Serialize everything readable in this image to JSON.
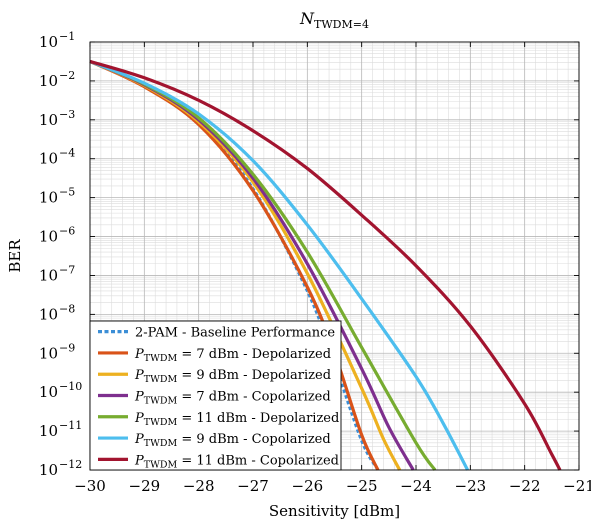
{
  "chart_data": {
    "type": "line",
    "title": "N",
    "title_sub": "TWDM=4",
    "xlabel": "Sensitivity [dBm]",
    "ylabel": "BER",
    "xlim": [
      -30,
      -21
    ],
    "ylog_exponent_range": [
      -12,
      -1
    ],
    "y_scale": "log",
    "grid": true,
    "legend_position": "bottom-left",
    "x_ticks": [
      {
        "value": -30,
        "label": "−30"
      },
      {
        "value": -29,
        "label": "−29"
      },
      {
        "value": -28,
        "label": "−28"
      },
      {
        "value": -27,
        "label": "−27"
      },
      {
        "value": -26,
        "label": "−26"
      },
      {
        "value": -25,
        "label": "−25"
      },
      {
        "value": -24,
        "label": "−24"
      },
      {
        "value": -23,
        "label": "−23"
      },
      {
        "value": -22,
        "label": "−22"
      },
      {
        "value": -21,
        "label": "−21"
      }
    ],
    "y_ticks": [
      {
        "exp": -1,
        "base": "10",
        "sup": "−1"
      },
      {
        "exp": -2,
        "base": "10",
        "sup": "−2"
      },
      {
        "exp": -3,
        "base": "10",
        "sup": "−3"
      },
      {
        "exp": -4,
        "base": "10",
        "sup": "−4"
      },
      {
        "exp": -5,
        "base": "10",
        "sup": "−5"
      },
      {
        "exp": -6,
        "base": "10",
        "sup": "−6"
      },
      {
        "exp": -7,
        "base": "10",
        "sup": "−7"
      },
      {
        "exp": -8,
        "base": "10",
        "sup": "−8"
      },
      {
        "exp": -9,
        "base": "10",
        "sup": "−9"
      },
      {
        "exp": -10,
        "base": "10",
        "sup": "−10"
      },
      {
        "exp": -11,
        "base": "10",
        "sup": "−11"
      },
      {
        "exp": -12,
        "base": "10",
        "sup": "−12"
      }
    ],
    "series": [
      {
        "id": "baseline",
        "legend": [
          {
            "t": "2-PAM - Baseline Performance"
          }
        ],
        "color": "#3b8ed6",
        "dashed": true,
        "points": [
          [
            -30,
            -1.5
          ],
          [
            -29,
            -2.13
          ],
          [
            -28,
            -3.08
          ],
          [
            -27,
            -4.77
          ],
          [
            -26,
            -7.4
          ],
          [
            -25.5,
            -9.25
          ],
          [
            -25,
            -11.25
          ],
          [
            -24.7,
            -12
          ]
        ]
      },
      {
        "id": "p7-depol",
        "legend": [
          {
            "t": "P",
            "i": true
          },
          {
            "t": "TWDM",
            "sub": true
          },
          {
            "t": " = 7 dBm - Depolarized"
          }
        ],
        "color": "#d95319",
        "dashed": false,
        "points": [
          [
            -30,
            -1.5
          ],
          [
            -29,
            -2.15
          ],
          [
            -28,
            -3.12
          ],
          [
            -27,
            -4.82
          ],
          [
            -26,
            -7.3
          ],
          [
            -25.5,
            -9.0
          ],
          [
            -25,
            -11.1
          ],
          [
            -24.7,
            -12
          ]
        ]
      },
      {
        "id": "p9-depol",
        "legend": [
          {
            "t": "P",
            "i": true
          },
          {
            "t": "TWDM",
            "sub": true
          },
          {
            "t": " = 9 dBm - Depolarized"
          }
        ],
        "color": "#edb120",
        "dashed": false,
        "points": [
          [
            -30,
            -1.5
          ],
          [
            -29,
            -2.12
          ],
          [
            -28,
            -3.05
          ],
          [
            -27,
            -4.6
          ],
          [
            -26,
            -6.95
          ],
          [
            -25,
            -9.9
          ],
          [
            -24.6,
            -11.2
          ],
          [
            -24.3,
            -12
          ]
        ]
      },
      {
        "id": "p7-copol",
        "legend": [
          {
            "t": "P",
            "i": true
          },
          {
            "t": "TWDM",
            "sub": true
          },
          {
            "t": " = 7 dBm - Copolarized"
          }
        ],
        "color": "#7e2f8e",
        "dashed": false,
        "points": [
          [
            -30,
            -1.5
          ],
          [
            -29,
            -2.1
          ],
          [
            -28,
            -3.0
          ],
          [
            -27,
            -4.5
          ],
          [
            -26,
            -6.7
          ],
          [
            -25,
            -9.4
          ],
          [
            -24.5,
            -10.9
          ],
          [
            -24.05,
            -12
          ]
        ]
      },
      {
        "id": "p11-depol",
        "legend": [
          {
            "t": "P",
            "i": true
          },
          {
            "t": "TWDM",
            "sub": true
          },
          {
            "t": " = 11 dBm - Depolarized"
          }
        ],
        "color": "#77ac30",
        "dashed": false,
        "points": [
          [
            -30,
            -1.5
          ],
          [
            -29,
            -2.08
          ],
          [
            -28,
            -2.95
          ],
          [
            -27,
            -4.4
          ],
          [
            -26,
            -6.4
          ],
          [
            -25,
            -8.85
          ],
          [
            -24,
            -11.3
          ],
          [
            -23.65,
            -12
          ]
        ]
      },
      {
        "id": "p9-copol",
        "legend": [
          {
            "t": "P",
            "i": true
          },
          {
            "t": "TWDM",
            "sub": true
          },
          {
            "t": " = 9 dBm - Copolarized"
          }
        ],
        "color": "#4dbeee",
        "dashed": false,
        "points": [
          [
            -30,
            -1.5
          ],
          [
            -29,
            -2.06
          ],
          [
            -28,
            -2.85
          ],
          [
            -27,
            -4.05
          ],
          [
            -26,
            -5.7
          ],
          [
            -25,
            -7.6
          ],
          [
            -24,
            -9.6
          ],
          [
            -23.5,
            -10.8
          ],
          [
            -23.05,
            -12
          ]
        ]
      },
      {
        "id": "p11-copol",
        "legend": [
          {
            "t": "P",
            "i": true
          },
          {
            "t": "TWDM",
            "sub": true
          },
          {
            "t": " = 11 dBm - Copolarized"
          }
        ],
        "color": "#a2142f",
        "dashed": false,
        "points": [
          [
            -30,
            -1.5
          ],
          [
            -29,
            -1.92
          ],
          [
            -28,
            -2.5
          ],
          [
            -27,
            -3.28
          ],
          [
            -26,
            -4.25
          ],
          [
            -25,
            -5.45
          ],
          [
            -24,
            -6.75
          ],
          [
            -23,
            -8.3
          ],
          [
            -22,
            -10.3
          ],
          [
            -21.5,
            -11.6
          ],
          [
            -21.35,
            -12
          ]
        ]
      }
    ]
  }
}
